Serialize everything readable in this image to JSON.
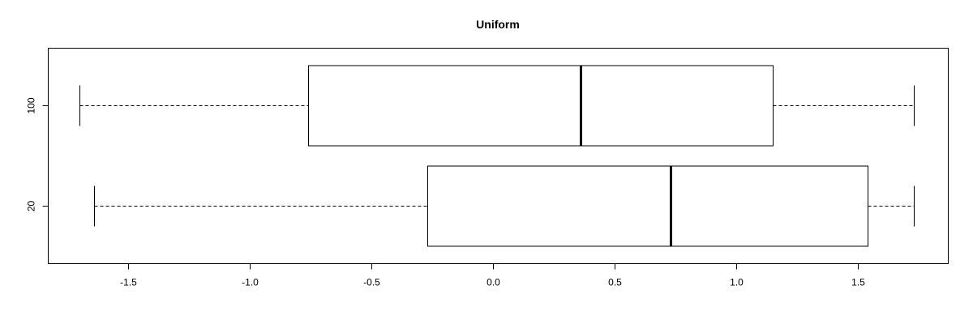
{
  "chart_data": {
    "type": "boxplot",
    "orientation": "horizontal",
    "title": "Uniform",
    "xlabel": "",
    "ylabel": "",
    "xlim": [
      -1.83,
      1.87
    ],
    "xticks": [
      -1.5,
      -1.0,
      -0.5,
      0.0,
      0.5,
      1.0,
      1.5
    ],
    "xtick_labels": [
      "-1.5",
      "-1.0",
      "-0.5",
      "0.0",
      "0.5",
      "1.0",
      "1.5"
    ],
    "categories": [
      "20",
      "100"
    ],
    "boxes": [
      {
        "label": "20",
        "whisker_low": -1.64,
        "q1": -0.27,
        "median": 0.73,
        "q3": 1.54,
        "whisker_high": 1.73
      },
      {
        "label": "100",
        "whisker_low": -1.7,
        "q1": -0.76,
        "median": 0.36,
        "q3": 1.15,
        "whisker_high": 1.73
      }
    ],
    "grid": false,
    "legend": "none"
  }
}
